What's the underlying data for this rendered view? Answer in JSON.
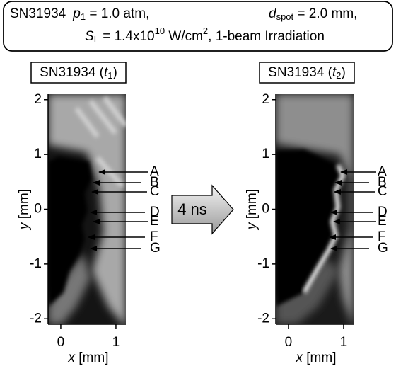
{
  "header": {
    "shot": "SN31934",
    "p_symbol": "p",
    "p_sub": "1",
    "p_value": " = 1.0 atm,",
    "d_symbol": "d",
    "d_sub": "spot",
    "d_value": " = 2.0 mm,",
    "s_symbol": "S",
    "s_sub": "L",
    "s_value": " = 1.4x10",
    "s_exp": "10",
    "s_unit": " W/cm",
    "s_unit_exp": "2",
    "s_tail": ", 1-beam Irradiation"
  },
  "delay": "4 ns",
  "panels": [
    {
      "title_prefix": "SN31934 (",
      "time_symbol": "t",
      "time_sub": "1",
      "title_suffix": ")",
      "y_symbol": "y",
      "y_unit": " [mm]",
      "x_symbol": "x",
      "x_unit": " [mm]",
      "ylim": [
        -2.1,
        2.1
      ],
      "yticks": [
        -2,
        -1,
        0,
        1,
        2
      ],
      "xlim": [
        -0.23,
        1.18
      ],
      "xticks": [
        0,
        1
      ],
      "markers": [
        "A",
        "B",
        "C",
        "D",
        "E",
        "F",
        "G"
      ]
    },
    {
      "title_prefix": "SN31934 (",
      "time_symbol": "t",
      "time_sub": "2",
      "title_suffix": ")",
      "y_symbol": "y",
      "y_unit": " [mm]",
      "x_symbol": "x",
      "x_unit": " [mm]",
      "ylim": [
        -2.1,
        2.1
      ],
      "yticks": [
        -2,
        -1,
        0,
        1,
        2
      ],
      "xlim": [
        -0.23,
        1.18
      ],
      "xticks": [
        0,
        1
      ],
      "markers": [
        "A",
        "B",
        "C",
        "D",
        "E",
        "F",
        "G"
      ]
    }
  ]
}
